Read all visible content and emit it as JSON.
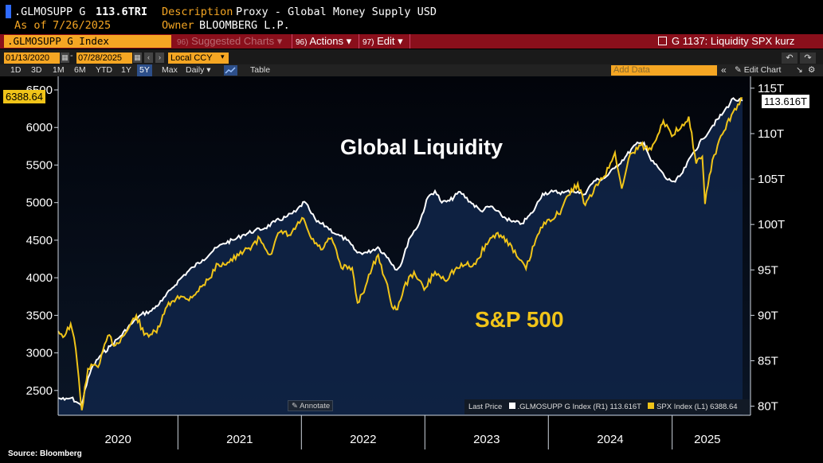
{
  "header": {
    "ticker": ".GLMOSUPP G",
    "value": "113.6TRI",
    "description_label": "Description",
    "description_value": "Proxy - Global Money Supply USD",
    "asof_label": "As of",
    "asof_value": "7/26/2025",
    "owner_label": "Owner",
    "owner_value": "BLOOMBERG L.P."
  },
  "menu": {
    "index_box": ".GLMOSUPP G Index",
    "suggested_num": "96)",
    "suggested_label": "Suggested Charts",
    "actions_num": "96)",
    "actions_label": "Actions",
    "edit_num": "97)",
    "edit_label": "Edit",
    "chart_title": "G 1137: Liquidity SPX kurz"
  },
  "datebar": {
    "start": "01/13/2020",
    "end": "07/28/2025",
    "currency": "Local CCY"
  },
  "ranges": [
    "1D",
    "3D",
    "1M",
    "6M",
    "YTD",
    "1Y",
    "5Y",
    "Max"
  ],
  "active_range": "5Y",
  "frequency": "Daily",
  "table_label": "Table",
  "add_data_placeholder": "Add Data",
  "edit_chart_label": "Edit Chart",
  "annotate_label": "Annotate",
  "source": "Source: Bloomberg",
  "chart_data": {
    "type": "line",
    "annotations": {
      "global_liquidity": "Global Liquidity",
      "sp500": "S&P 500"
    },
    "left_axis": {
      "ticks": [
        2500,
        3000,
        3500,
        4000,
        4500,
        5000,
        5500,
        6000,
        6500
      ],
      "range": [
        2170,
        6680
      ]
    },
    "right_axis": {
      "ticks": [
        "80T",
        "85T",
        "90T",
        "95T",
        "100T",
        "105T",
        "110T",
        "115T"
      ],
      "range": [
        79.0,
        116.3
      ]
    },
    "x_labels": [
      "2020",
      "2021",
      "2022",
      "2023",
      "2024",
      "2025"
    ],
    "x_range": [
      "2020-01-13",
      "2025-07-28"
    ],
    "legend": {
      "title": "Last Price",
      "items": [
        {
          "name": ".GLMOSUPP G Index",
          "axis": "(R1)",
          "last": "113.616T",
          "color": "#ffffff"
        },
        {
          "name": "SPX Index",
          "axis": "(L1)",
          "last": "6388.64",
          "color": "#f0c419"
        }
      ]
    },
    "last_labels": {
      "spx": "6388.64",
      "liquidity": "113.616T"
    },
    "series": [
      {
        "name": ".GLMOSUPP G Index",
        "axis": "right",
        "color": "#ffffff",
        "points": [
          [
            "2020-01-13",
            80.9
          ],
          [
            "2020-02-01",
            80.7
          ],
          [
            "2020-02-20",
            80.9
          ],
          [
            "2020-03-10",
            80.4
          ],
          [
            "2020-03-22",
            80.0
          ],
          [
            "2020-04-01",
            81.8
          ],
          [
            "2020-04-20",
            84.1
          ],
          [
            "2020-05-15",
            85.5
          ],
          [
            "2020-06-15",
            86.6
          ],
          [
            "2020-07-15",
            87.7
          ],
          [
            "2020-08-15",
            89.0
          ],
          [
            "2020-09-15",
            90.1
          ],
          [
            "2020-10-15",
            90.5
          ],
          [
            "2020-11-15",
            91.6
          ],
          [
            "2020-12-15",
            93.0
          ],
          [
            "2021-01-15",
            94.3
          ],
          [
            "2021-02-15",
            95.3
          ],
          [
            "2021-03-15",
            96.1
          ],
          [
            "2021-04-15",
            97.1
          ],
          [
            "2021-05-15",
            97.9
          ],
          [
            "2021-06-15",
            98.3
          ],
          [
            "2021-07-15",
            98.9
          ],
          [
            "2021-08-15",
            99.3
          ],
          [
            "2021-09-15",
            99.6
          ],
          [
            "2021-10-15",
            100.3
          ],
          [
            "2021-11-15",
            100.8
          ],
          [
            "2021-12-15",
            101.4
          ],
          [
            "2022-01-10",
            102.5
          ],
          [
            "2022-01-25",
            101.6
          ],
          [
            "2022-02-15",
            100.3
          ],
          [
            "2022-03-15",
            99.8
          ],
          [
            "2022-04-15",
            98.9
          ],
          [
            "2022-05-15",
            98.3
          ],
          [
            "2022-06-15",
            96.9
          ],
          [
            "2022-07-15",
            96.9
          ],
          [
            "2022-08-15",
            97.5
          ],
          [
            "2022-09-15",
            96.3
          ],
          [
            "2022-10-10",
            95.0
          ],
          [
            "2022-10-25",
            95.8
          ],
          [
            "2022-11-15",
            98.4
          ],
          [
            "2022-12-15",
            100.1
          ],
          [
            "2023-01-10",
            103.0
          ],
          [
            "2023-01-31",
            103.7
          ],
          [
            "2023-02-20",
            102.4
          ],
          [
            "2023-03-15",
            102.6
          ],
          [
            "2023-04-15",
            103.6
          ],
          [
            "2023-05-15",
            102.5
          ],
          [
            "2023-06-15",
            101.5
          ],
          [
            "2023-07-15",
            102.0
          ],
          [
            "2023-08-15",
            101.0
          ],
          [
            "2023-09-15",
            100.3
          ],
          [
            "2023-10-15",
            100.1
          ],
          [
            "2023-11-15",
            101.3
          ],
          [
            "2023-12-15",
            103.4
          ],
          [
            "2024-01-15",
            103.6
          ],
          [
            "2024-02-15",
            103.5
          ],
          [
            "2024-03-15",
            103.7
          ],
          [
            "2024-04-15",
            103.3
          ],
          [
            "2024-05-15",
            104.8
          ],
          [
            "2024-06-15",
            105.1
          ],
          [
            "2024-07-15",
            106.2
          ],
          [
            "2024-08-15",
            107.4
          ],
          [
            "2024-09-15",
            108.8
          ],
          [
            "2024-10-10",
            109.0
          ],
          [
            "2024-10-31",
            107.0
          ],
          [
            "2024-11-20",
            106.3
          ],
          [
            "2024-12-15",
            105.0
          ],
          [
            "2025-01-10",
            104.7
          ],
          [
            "2025-02-01",
            105.7
          ],
          [
            "2025-03-01",
            107.7
          ],
          [
            "2025-04-01",
            109.4
          ],
          [
            "2025-05-01",
            110.9
          ],
          [
            "2025-06-01",
            112.3
          ],
          [
            "2025-07-01",
            113.9
          ],
          [
            "2025-07-15",
            113.6
          ],
          [
            "2025-07-28",
            113.616
          ]
        ]
      },
      {
        "name": "SPX Index",
        "axis": "left",
        "color": "#f0c419",
        "points": [
          [
            "2020-01-13",
            3290
          ],
          [
            "2020-02-01",
            3225
          ],
          [
            "2020-02-19",
            3386
          ],
          [
            "2020-03-05",
            3050
          ],
          [
            "2020-03-23",
            2237
          ],
          [
            "2020-04-10",
            2790
          ],
          [
            "2020-05-15",
            2860
          ],
          [
            "2020-06-08",
            3230
          ],
          [
            "2020-06-30",
            3100
          ],
          [
            "2020-07-31",
            3270
          ],
          [
            "2020-08-31",
            3500
          ],
          [
            "2020-09-23",
            3240
          ],
          [
            "2020-10-30",
            3270
          ],
          [
            "2020-11-30",
            3620
          ],
          [
            "2020-12-31",
            3756
          ],
          [
            "2021-01-29",
            3714
          ],
          [
            "2021-02-26",
            3811
          ],
          [
            "2021-03-31",
            3973
          ],
          [
            "2021-04-30",
            4181
          ],
          [
            "2021-05-28",
            4204
          ],
          [
            "2021-06-30",
            4297
          ],
          [
            "2021-07-30",
            4395
          ],
          [
            "2021-08-31",
            4523
          ],
          [
            "2021-09-30",
            4308
          ],
          [
            "2021-10-29",
            4605
          ],
          [
            "2021-11-30",
            4567
          ],
          [
            "2021-12-31",
            4766
          ],
          [
            "2022-01-03",
            4797
          ],
          [
            "2022-01-31",
            4516
          ],
          [
            "2022-02-28",
            4374
          ],
          [
            "2022-03-31",
            4530
          ],
          [
            "2022-04-29",
            4132
          ],
          [
            "2022-05-31",
            4132
          ],
          [
            "2022-06-16",
            3666
          ],
          [
            "2022-06-30",
            3785
          ],
          [
            "2022-07-29",
            4130
          ],
          [
            "2022-08-16",
            4305
          ],
          [
            "2022-09-30",
            3585
          ],
          [
            "2022-10-12",
            3577
          ],
          [
            "2022-10-31",
            3872
          ],
          [
            "2022-11-30",
            4080
          ],
          [
            "2022-12-30",
            3840
          ],
          [
            "2023-01-31",
            4077
          ],
          [
            "2023-02-28",
            3970
          ],
          [
            "2023-03-31",
            4109
          ],
          [
            "2023-04-28",
            4169
          ],
          [
            "2023-05-31",
            4180
          ],
          [
            "2023-06-30",
            4450
          ],
          [
            "2023-07-31",
            4589
          ],
          [
            "2023-08-31",
            4508
          ],
          [
            "2023-09-29",
            4288
          ],
          [
            "2023-10-27",
            4117
          ],
          [
            "2023-11-30",
            4568
          ],
          [
            "2023-12-29",
            4770
          ],
          [
            "2024-01-31",
            4846
          ],
          [
            "2024-02-29",
            5096
          ],
          [
            "2024-03-28",
            5254
          ],
          [
            "2024-04-19",
            4967
          ],
          [
            "2024-05-31",
            5278
          ],
          [
            "2024-06-28",
            5460
          ],
          [
            "2024-07-16",
            5667
          ],
          [
            "2024-08-05",
            5186
          ],
          [
            "2024-08-30",
            5648
          ],
          [
            "2024-09-30",
            5762
          ],
          [
            "2024-10-31",
            5705
          ],
          [
            "2024-11-29",
            6032
          ],
          [
            "2024-12-06",
            6090
          ],
          [
            "2024-12-31",
            5882
          ],
          [
            "2025-01-31",
            6040
          ],
          [
            "2025-02-19",
            6144
          ],
          [
            "2025-03-13",
            5521
          ],
          [
            "2025-03-31",
            5612
          ],
          [
            "2025-04-08",
            4982
          ],
          [
            "2025-04-30",
            5569
          ],
          [
            "2025-05-30",
            5912
          ],
          [
            "2025-06-30",
            6205
          ],
          [
            "2025-07-28",
            6388.64
          ]
        ]
      }
    ]
  }
}
